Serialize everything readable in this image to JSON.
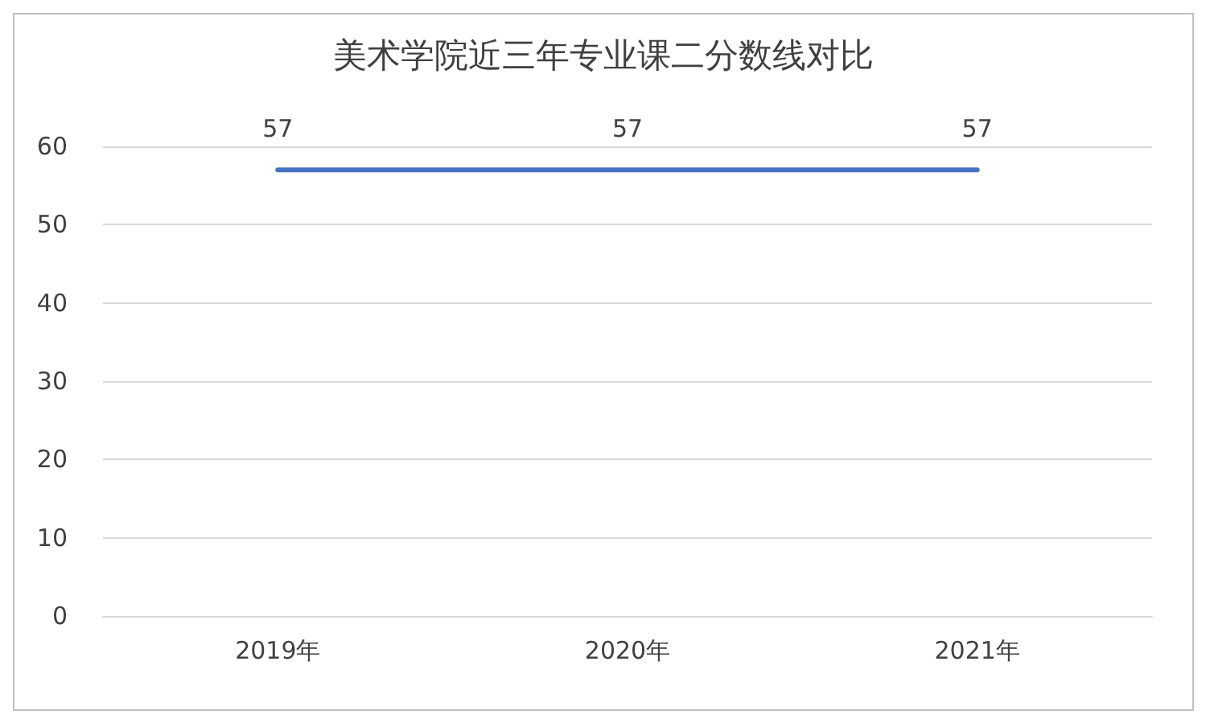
{
  "chart_data": {
    "type": "line",
    "title": "美术学院近三年专业课二分数线对比",
    "categories": [
      "2019年",
      "2020年",
      "2021年"
    ],
    "series": [
      {
        "color": "#4472c4",
        "values": [
          57,
          57,
          57
        ]
      }
    ],
    "ylim": [
      0,
      60
    ],
    "yticks": [
      0,
      10,
      20,
      30,
      40,
      50,
      60
    ],
    "grid": "y",
    "marker": "none",
    "data_labels": true
  }
}
